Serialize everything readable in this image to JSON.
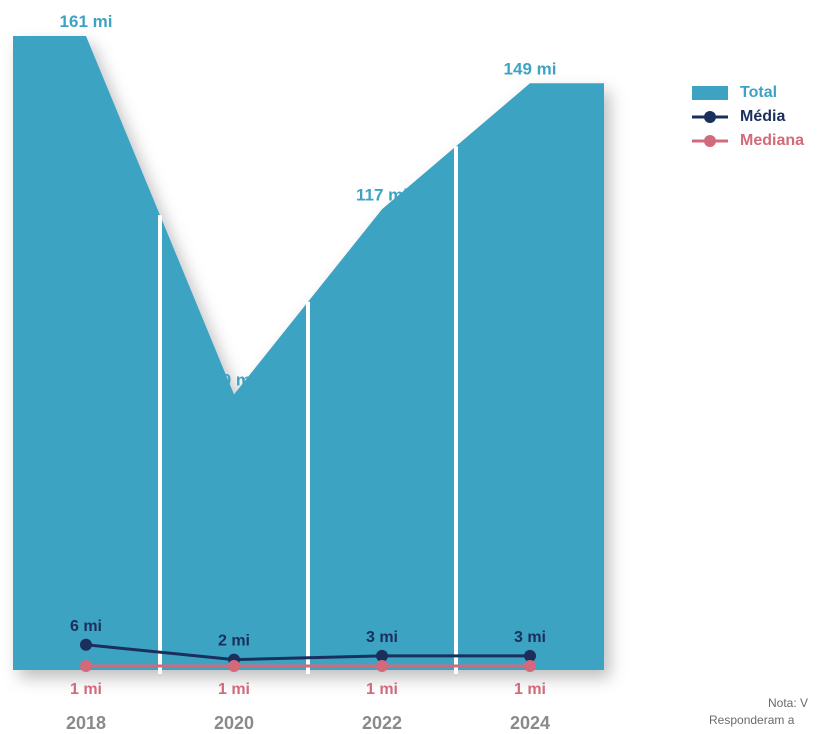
{
  "chart_data": {
    "type": "area",
    "categories": [
      "2018",
      "2020",
      "2022",
      "2024"
    ],
    "series": [
      {
        "name": "Total",
        "values": [
          161,
          70,
          117,
          149
        ],
        "labels": [
          "161 mi",
          "70 mi",
          "117 mi",
          "149 mi"
        ],
        "color": "#3ea3c3"
      },
      {
        "name": "Média",
        "values": [
          6,
          2,
          3,
          3
        ],
        "labels": [
          "6 mi",
          "2 mi",
          "3 mi",
          "3 mi"
        ],
        "color": "#1a2f5c"
      },
      {
        "name": "Mediana",
        "values": [
          1,
          1,
          1,
          1
        ],
        "labels": [
          "1 mi",
          "1 mi",
          "1 mi",
          "1 mi"
        ],
        "color": "#d26a7b"
      }
    ],
    "ylim": [
      0,
      161
    ],
    "grid": false,
    "legend_placement": "top-right"
  },
  "note": {
    "line1": "Nota:  V",
    "line2": "Responderam a"
  }
}
